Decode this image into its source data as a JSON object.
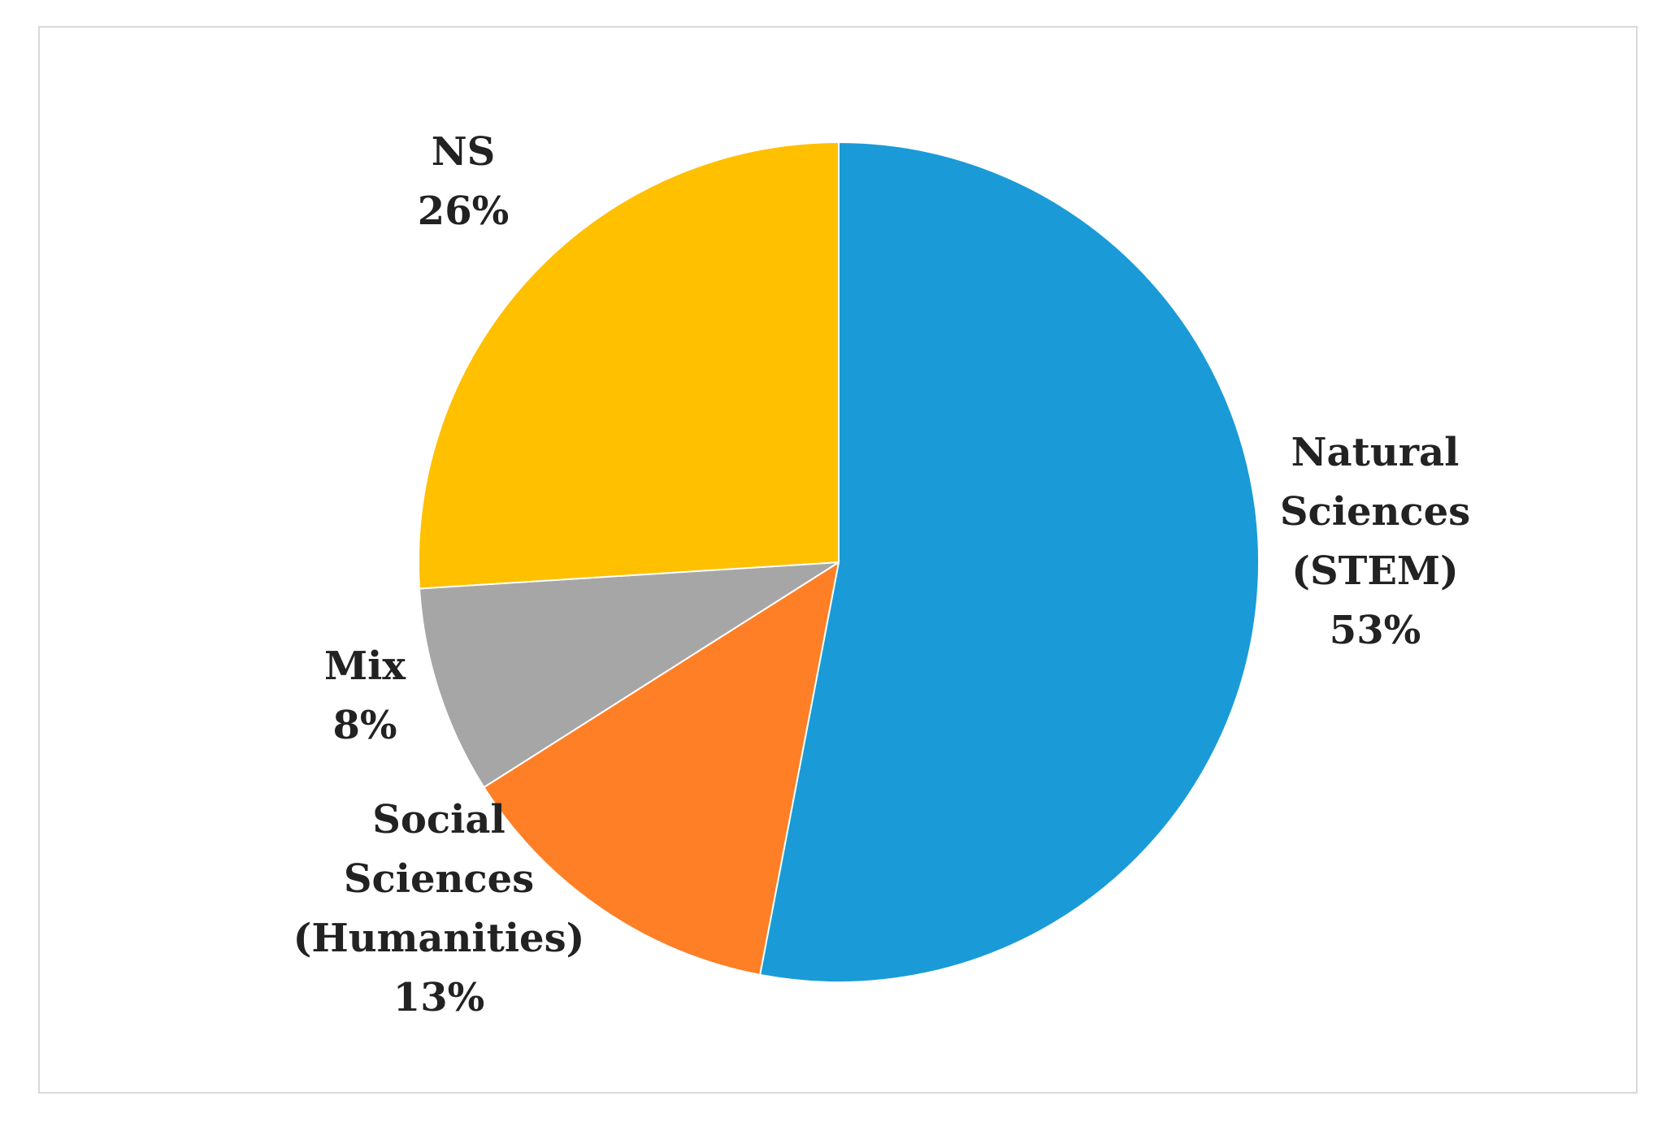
{
  "chart_data": {
    "type": "pie",
    "title": "",
    "slices": [
      {
        "label_lines": [
          "Natural",
          "Sciences",
          "(STEM)"
        ],
        "percent_label": "53%",
        "value": 53,
        "color": "#1a9bd7"
      },
      {
        "label_lines": [
          "Social",
          "Sciences",
          "(Humanities)"
        ],
        "percent_label": "13%",
        "value": 13,
        "color": "#fe7f26"
      },
      {
        "label_lines": [
          "Mix"
        ],
        "percent_label": "8%",
        "value": 8,
        "color": "#a6a6a6"
      },
      {
        "label_lines": [
          "NS"
        ],
        "percent_label": "26%",
        "value": 26,
        "color": "#ffc000"
      }
    ],
    "start": "12 o'clock",
    "direction": "clockwise",
    "legend": "none",
    "data_labels": "outside, category and percentage"
  }
}
